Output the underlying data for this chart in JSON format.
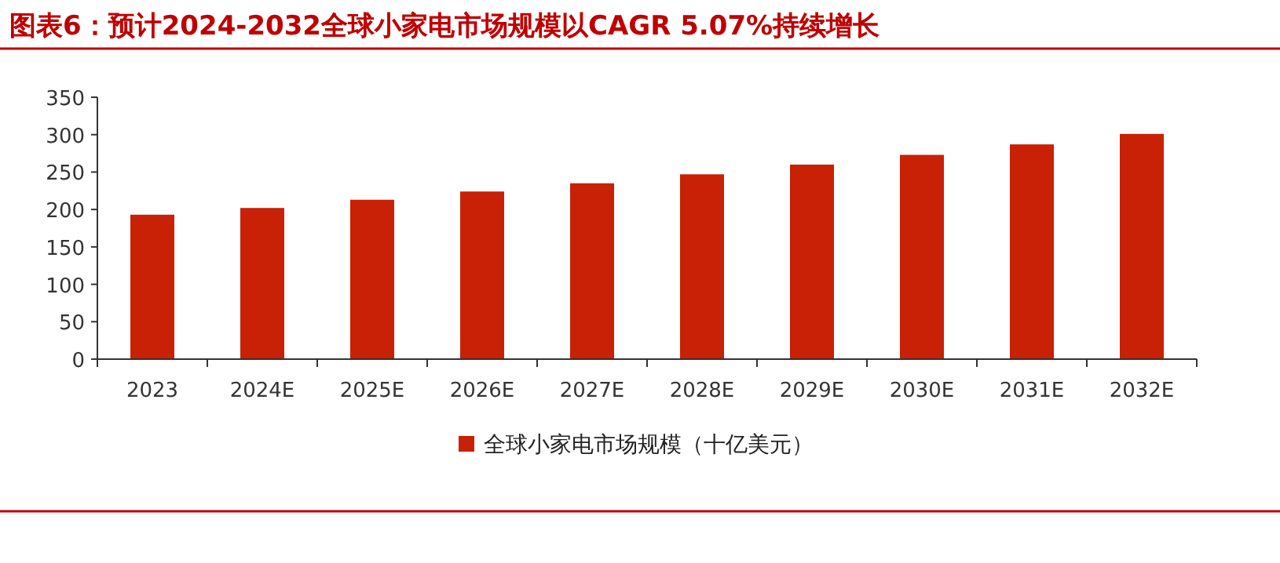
{
  "chart_data": {
    "type": "bar",
    "title": "图表6：预计2024-2032全球小家电市场规模以CAGR 5.07%持续增长",
    "categories": [
      "2023",
      "2024E",
      "2025E",
      "2026E",
      "2027E",
      "2028E",
      "2029E",
      "2030E",
      "2031E",
      "2032E"
    ],
    "series": [
      {
        "name": "全球小家电市场规模（十亿美元）",
        "color": "#c82106",
        "values": [
          193,
          202,
          213,
          224,
          235,
          247,
          260,
          273,
          287,
          301
        ]
      }
    ],
    "ylim": [
      0,
      350
    ],
    "yticks": [
      0,
      50,
      100,
      150,
      200,
      250,
      300,
      350
    ],
    "grid": false,
    "legend": "bottom"
  }
}
